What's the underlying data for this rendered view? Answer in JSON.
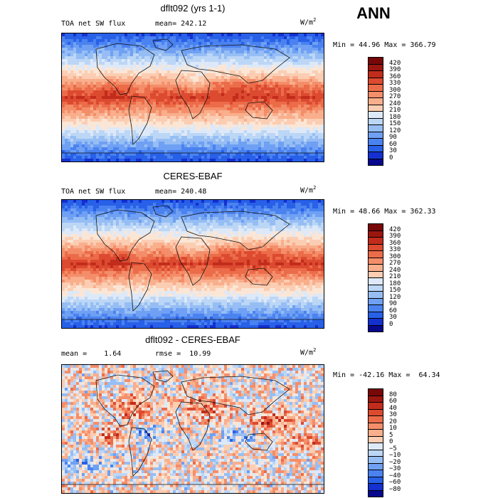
{
  "header": {
    "season": "ANN"
  },
  "palettes": {
    "abs": [
      "#08088f",
      "#1530d0",
      "#2860e8",
      "#4a82f0",
      "#6fa0f3",
      "#96bef4",
      "#bcd6f6",
      "#dde9f8",
      "#fbe6d6",
      "#fbcdb2",
      "#f9ae8c",
      "#f48e6a",
      "#ec6c4a",
      "#dc4a30",
      "#c22c1c",
      "#9c1610",
      "#780808"
    ],
    "diff": [
      "#08088f",
      "#1530d0",
      "#2860e8",
      "#4a82f0",
      "#6fa0f3",
      "#96bef4",
      "#bcd6f6",
      "#dde9f8",
      "#fbe6d6",
      "#fbcdb2",
      "#f9ae8c",
      "#f48e6a",
      "#ec6c4a",
      "#dc4a30",
      "#c22c1c",
      "#9c1610",
      "#780808"
    ]
  },
  "chart_data": [
    {
      "type": "heatmap",
      "title": "dflt092 (yrs 1-1)",
      "variable": "TOA net SW flux",
      "mean_label": "mean=",
      "mean": "242.12",
      "units_base": "W/m",
      "units_exp": "2",
      "min_label": "Min =",
      "min": "44.96",
      "max_label": "Max =",
      "max": "366.79",
      "colorbar_levels": [
        "420",
        "390",
        "360",
        "330",
        "300",
        "270",
        "240",
        "210",
        "180",
        "150",
        "120",
        "90",
        "60",
        "30",
        "0"
      ],
      "palette": "abs",
      "seed": 7
    },
    {
      "type": "heatmap",
      "title": "CERES-EBAF",
      "variable": "TOA net SW flux",
      "mean_label": "mean=",
      "mean": "240.48",
      "units_base": "W/m",
      "units_exp": "2",
      "min_label": "Min =",
      "min": "48.66",
      "max_label": "Max =",
      "max": "362.33",
      "colorbar_levels": [
        "420",
        "390",
        "360",
        "330",
        "300",
        "270",
        "240",
        "210",
        "180",
        "150",
        "120",
        "90",
        "60",
        "30",
        "0"
      ],
      "palette": "abs",
      "seed": 19
    },
    {
      "type": "heatmap",
      "title": "dflt092 - CERES-EBAF",
      "mean_label": "mean =",
      "mean": "1.64",
      "rmse_label": "rmse =",
      "rmse": "10.99",
      "units_base": "W/m",
      "units_exp": "2",
      "min_label": "Min =",
      "min": "-42.16",
      "max_label": "Max =",
      "max": "64.34",
      "colorbar_levels": [
        "80",
        "60",
        "40",
        "30",
        "20",
        "10",
        "5",
        "0",
        "−5",
        "−10",
        "−20",
        "−30",
        "−40",
        "−60",
        "−80"
      ],
      "palette": "diff",
      "seed": 31
    }
  ]
}
